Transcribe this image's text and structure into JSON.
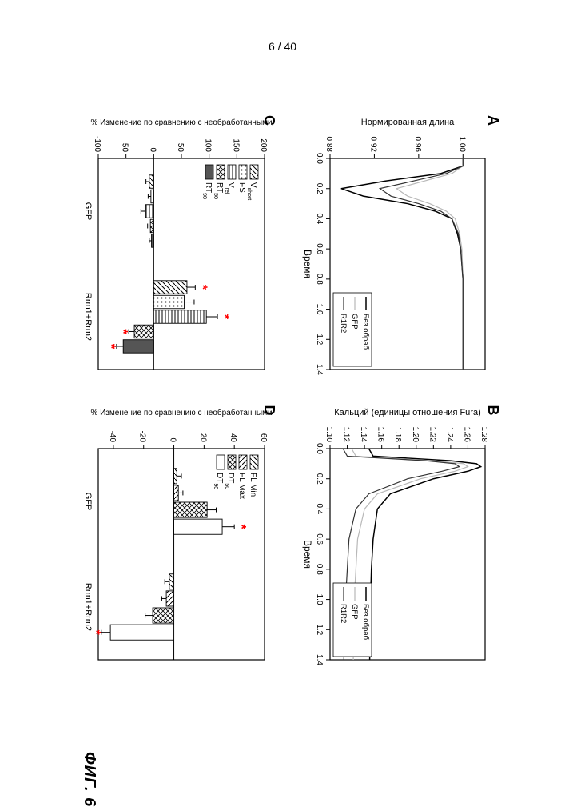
{
  "page_number": "6 / 40",
  "caption": "ФИГ. 6",
  "colors": {
    "background": "#ffffff",
    "axis": "#000000",
    "text": "#000000",
    "line_untreated": "#000000",
    "line_gfp": "#b8b8b8",
    "line_r1r2": "#333333",
    "bar_border": "#000000",
    "star": "#ff0000"
  },
  "panelA": {
    "label": "A",
    "xlabel": "Время",
    "ylabel": "Нормированная длина",
    "xlim": [
      0.0,
      1.4
    ],
    "ylim": [
      0.88,
      1.02
    ],
    "xticks": [
      0.0,
      0.2,
      0.4,
      0.6,
      0.8,
      1.0,
      1.2,
      1.4
    ],
    "yticks": [
      0.88,
      0.92,
      0.96,
      1.0
    ],
    "legend": {
      "pos": "right",
      "items": [
        "Без обраб.",
        "GFP",
        "R1R2"
      ]
    },
    "series": [
      {
        "name": "Без обраб.",
        "color": "#000000",
        "width": 1.5,
        "data": [
          [
            0.0,
            1.0
          ],
          [
            0.05,
            1.0
          ],
          [
            0.1,
            0.98
          ],
          [
            0.15,
            0.93
          ],
          [
            0.2,
            0.89
          ],
          [
            0.25,
            0.91
          ],
          [
            0.3,
            0.95
          ],
          [
            0.35,
            0.975
          ],
          [
            0.4,
            0.99
          ],
          [
            0.5,
            0.995
          ],
          [
            0.6,
            0.998
          ],
          [
            0.8,
            1.0
          ],
          [
            1.0,
            1.0
          ],
          [
            1.2,
            1.0
          ],
          [
            1.4,
            1.0
          ]
        ]
      },
      {
        "name": "GFP",
        "color": "#b8b8b8",
        "width": 1.2,
        "data": [
          [
            0.0,
            1.0
          ],
          [
            0.05,
            1.0
          ],
          [
            0.1,
            0.99
          ],
          [
            0.15,
            0.965
          ],
          [
            0.2,
            0.94
          ],
          [
            0.25,
            0.95
          ],
          [
            0.3,
            0.97
          ],
          [
            0.35,
            0.985
          ],
          [
            0.4,
            0.993
          ],
          [
            0.5,
            0.997
          ],
          [
            0.6,
            0.999
          ],
          [
            0.8,
            1.0
          ],
          [
            1.0,
            1.0
          ],
          [
            1.2,
            1.0
          ],
          [
            1.4,
            1.0
          ]
        ]
      },
      {
        "name": "R1R2",
        "color": "#333333",
        "width": 1.2,
        "data": [
          [
            0.0,
            1.0
          ],
          [
            0.05,
            1.0
          ],
          [
            0.1,
            0.985
          ],
          [
            0.15,
            0.955
          ],
          [
            0.2,
            0.925
          ],
          [
            0.25,
            0.935
          ],
          [
            0.3,
            0.96
          ],
          [
            0.35,
            0.98
          ],
          [
            0.4,
            0.99
          ],
          [
            0.5,
            0.996
          ],
          [
            0.6,
            0.998
          ],
          [
            0.8,
            1.0
          ],
          [
            1.0,
            1.0
          ],
          [
            1.2,
            1.0
          ],
          [
            1.4,
            1.0
          ]
        ]
      }
    ]
  },
  "panelB": {
    "label": "B",
    "xlabel": "Время",
    "ylabel": "Кальций (единицы отношения Fura)",
    "xlim": [
      0.0,
      1.4
    ],
    "ylim": [
      1.1,
      1.28
    ],
    "xticks": [
      0.0,
      0.2,
      0.4,
      0.6,
      0.8,
      1.0,
      1.2,
      1.4
    ],
    "yticks": [
      1.1,
      1.12,
      1.14,
      1.16,
      1.18,
      1.2,
      1.22,
      1.24,
      1.26,
      1.28
    ],
    "legend": {
      "pos": "right",
      "items": [
        "Без обраб.",
        "GFP",
        "R1R2"
      ]
    },
    "series": [
      {
        "name": "Без обраб.",
        "color": "#000000",
        "width": 1.5,
        "data": [
          [
            0.0,
            1.145
          ],
          [
            0.05,
            1.15
          ],
          [
            0.08,
            1.24
          ],
          [
            0.1,
            1.27
          ],
          [
            0.12,
            1.275
          ],
          [
            0.15,
            1.26
          ],
          [
            0.2,
            1.22
          ],
          [
            0.3,
            1.17
          ],
          [
            0.4,
            1.155
          ],
          [
            0.6,
            1.15
          ],
          [
            0.8,
            1.148
          ],
          [
            1.0,
            1.147
          ],
          [
            1.2,
            1.147
          ],
          [
            1.4,
            1.146
          ]
        ]
      },
      {
        "name": "GFP",
        "color": "#b8b8b8",
        "width": 1.2,
        "data": [
          [
            0.0,
            1.125
          ],
          [
            0.05,
            1.13
          ],
          [
            0.08,
            1.22
          ],
          [
            0.1,
            1.255
          ],
          [
            0.12,
            1.26
          ],
          [
            0.15,
            1.245
          ],
          [
            0.2,
            1.205
          ],
          [
            0.3,
            1.155
          ],
          [
            0.4,
            1.14
          ],
          [
            0.6,
            1.132
          ],
          [
            0.8,
            1.13
          ],
          [
            1.0,
            1.128
          ],
          [
            1.2,
            1.127
          ],
          [
            1.4,
            1.127
          ]
        ]
      },
      {
        "name": "R1R2",
        "color": "#333333",
        "width": 1.2,
        "data": [
          [
            0.0,
            1.115
          ],
          [
            0.05,
            1.12
          ],
          [
            0.08,
            1.21
          ],
          [
            0.1,
            1.245
          ],
          [
            0.12,
            1.25
          ],
          [
            0.15,
            1.23
          ],
          [
            0.2,
            1.19
          ],
          [
            0.3,
            1.145
          ],
          [
            0.4,
            1.13
          ],
          [
            0.6,
            1.122
          ],
          [
            0.8,
            1.12
          ],
          [
            1.0,
            1.118
          ],
          [
            1.2,
            1.117
          ],
          [
            1.4,
            1.116
          ]
        ]
      }
    ]
  },
  "panelC": {
    "label": "C",
    "ylabel": "% Изменение по сравнению с необработанными",
    "ylim": [
      -100,
      200
    ],
    "yticks": [
      -100,
      -50,
      0,
      50,
      100,
      150,
      200
    ],
    "groups": [
      "GFP",
      "Rrm1+Rrm2"
    ],
    "measures": [
      {
        "name": "Vshort",
        "pattern": "diag"
      },
      {
        "name": "FS",
        "pattern": "dots"
      },
      {
        "name": "Vrel",
        "pattern": "hlines"
      },
      {
        "name": "RT50",
        "pattern": "cross"
      },
      {
        "name": "RT90",
        "pattern": "solid"
      }
    ],
    "bars": {
      "GFP": [
        {
          "measure": "Vshort",
          "value": -8,
          "err": 6,
          "sig": false
        },
        {
          "measure": "FS",
          "value": -5,
          "err": 5,
          "sig": false
        },
        {
          "measure": "Vrel",
          "value": -15,
          "err": 8,
          "sig": false
        },
        {
          "measure": "RT50",
          "value": -6,
          "err": 5,
          "sig": false
        },
        {
          "measure": "RT90",
          "value": -4,
          "err": 4,
          "sig": false
        }
      ],
      "Rrm1+Rrm2": [
        {
          "measure": "Vshort",
          "value": 60,
          "err": 15,
          "sig": true
        },
        {
          "measure": "FS",
          "value": 55,
          "err": 18,
          "sig": false
        },
        {
          "measure": "Vrel",
          "value": 95,
          "err": 20,
          "sig": true
        },
        {
          "measure": "RT50",
          "value": -35,
          "err": 10,
          "sig": true
        },
        {
          "measure": "RT90",
          "value": -55,
          "err": 12,
          "sig": true
        }
      ]
    },
    "bar_width": 0.14
  },
  "panelD": {
    "label": "D",
    "ylabel": "% Изменение по сравнению с необработанными",
    "ylim": [
      -50,
      60
    ],
    "yticks": [
      -40,
      -20,
      0,
      20,
      40,
      60
    ],
    "groups": [
      "GFP",
      "Rrm1+Rrm2"
    ],
    "measures": [
      {
        "name": "FL Min",
        "pattern": "diag"
      },
      {
        "name": "FL Max",
        "pattern": "hatch2"
      },
      {
        "name": "DT50",
        "pattern": "cross"
      },
      {
        "name": "DT90",
        "pattern": "open"
      }
    ],
    "bars": {
      "GFP": [
        {
          "measure": "FL Min",
          "value": 2,
          "err": 3,
          "sig": false
        },
        {
          "measure": "FL Max",
          "value": 3,
          "err": 3,
          "sig": false
        },
        {
          "measure": "DT50",
          "value": 22,
          "err": 6,
          "sig": false
        },
        {
          "measure": "DT90",
          "value": 32,
          "err": 8,
          "sig": true
        }
      ],
      "Rrm1+Rrm2": [
        {
          "measure": "FL Min",
          "value": -3,
          "err": 3,
          "sig": false
        },
        {
          "measure": "FL Max",
          "value": -5,
          "err": 3,
          "sig": false
        },
        {
          "measure": "DT50",
          "value": -14,
          "err": 5,
          "sig": false
        },
        {
          "measure": "DT90",
          "value": -42,
          "err": 6,
          "sig": true
        }
      ]
    },
    "bar_width": 0.16
  }
}
